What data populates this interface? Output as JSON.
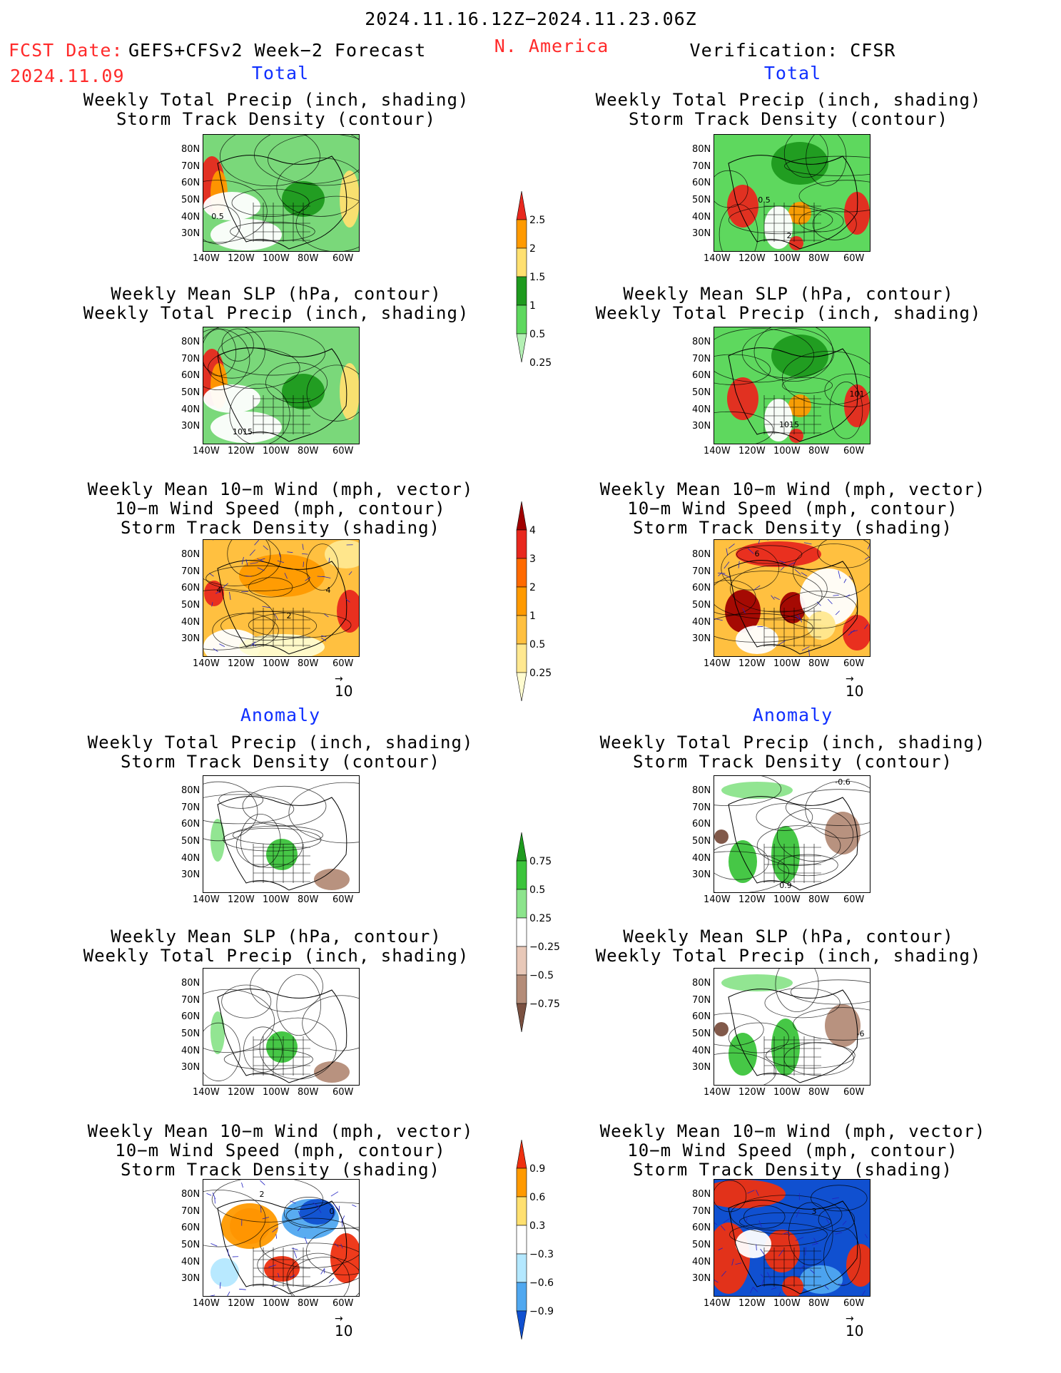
{
  "header": {
    "period": "2024.11.16.12Z−2024.11.23.06Z",
    "fcst_label": "FCST Date:",
    "fcst_model": "GEFS+CFSv2 Week−2 Forecast",
    "fcst_date": "2024.11.09",
    "region": "N. America",
    "verification": "Verification: CFSR"
  },
  "sections": {
    "total": "Total",
    "anomaly": "Anomaly"
  },
  "panel_titles": {
    "precip_storm_1": "Weekly Total Precip (inch, shading)",
    "precip_storm_2": "Storm Track Density (contour)",
    "slp_precip_1": "Weekly Mean SLP (hPa, contour)",
    "slp_precip_2": "Weekly Total Precip (inch, shading)",
    "wind_1": "Weekly Mean 10−m Wind (mph, vector)",
    "wind_2": "10−m Wind Speed (mph, contour)",
    "wind_3": "Storm Track Density (shading)"
  },
  "axes": {
    "lat": [
      "80N",
      "70N",
      "60N",
      "50N",
      "40N",
      "30N"
    ],
    "lon": [
      "140W",
      "120W",
      "100W",
      "80W",
      "60W"
    ]
  },
  "vector_ref": "10",
  "map_labels": {
    "l_precip_total": "0.5",
    "l_slp_total": "1015",
    "l_wind_total_a": "4",
    "l_wind_total_b": "2",
    "l_wind_total_c": "4",
    "l_wind_anom": "0",
    "l_wind_anom_b": "2",
    "r_precip_total_a": "0.5",
    "r_precip_total_b": "2",
    "r_slp_total_a": "1015",
    "r_slp_total_b": "101",
    "r_wind_total": "6",
    "r_precip_anom_a": "-0.6",
    "r_precip_anom_b": "0.9",
    "r_slp_anom": "-6",
    "r_wind_anom": "3"
  },
  "colorbars": {
    "precip_total": {
      "labels": [
        "2.5",
        "2",
        "1.5",
        "1",
        "0.5",
        "0.25"
      ],
      "colors": [
        "#e8281e",
        "#ff9a00",
        "#ffe070",
        "#1e9a1e",
        "#5ed85e",
        "#b4f0b4"
      ]
    },
    "storm_total": {
      "labels": [
        "4",
        "3",
        "2",
        "1",
        "0.5",
        "0.25"
      ],
      "colors": [
        "#a00000",
        "#e8281e",
        "#ff6a00",
        "#ff9a00",
        "#ffc040",
        "#ffe890",
        "#fffcd0"
      ]
    },
    "precip_anom": {
      "labels": [
        "0.75",
        "0.5",
        "0.25",
        "−0.25",
        "−0.5",
        "−0.75"
      ],
      "colors": [
        "#1e9a1e",
        "#3cc43c",
        "#8ce48c",
        "#ffffff",
        "#e8c8b8",
        "#b48c78",
        "#7a5040"
      ]
    },
    "storm_anom": {
      "labels": [
        "0.9",
        "0.6",
        "0.3",
        "−0.3",
        "−0.6",
        "−0.9"
      ],
      "colors": [
        "#ee3010",
        "#ff9a00",
        "#ffe070",
        "#ffffff",
        "#b4e8ff",
        "#50a8f0",
        "#1050d0"
      ]
    }
  }
}
